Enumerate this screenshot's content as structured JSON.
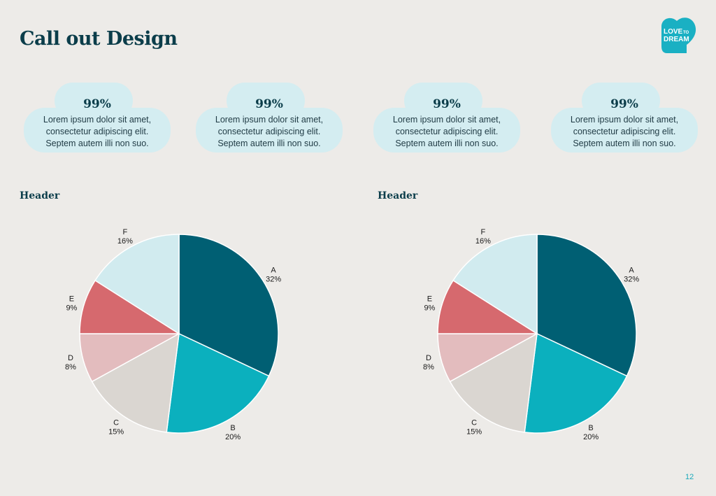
{
  "page": {
    "title": "Call out Design",
    "page_number": "12"
  },
  "logo": {
    "line1": "LOVE",
    "line2": "TO",
    "line3": "DREAM",
    "color": "#1AB0C3"
  },
  "callouts": [
    {
      "stat": "99%",
      "lines": [
        "Lorem ipsum dolor sit amet,",
        "consectetur adipiscing elit.",
        "Septem autem illi non suo."
      ]
    },
    {
      "stat": "99%",
      "lines": [
        "Lorem ipsum dolor sit amet,",
        "consectetur adipiscing elit.",
        "Septem autem illi non suo."
      ]
    },
    {
      "stat": "99%",
      "lines": [
        "Lorem ipsum dolor sit amet,",
        "consectetur adipiscing elit.",
        "Septem autem illi non suo."
      ]
    },
    {
      "stat": "99%",
      "lines": [
        "Lorem ipsum dolor sit amet,",
        "consectetur adipiscing elit.",
        "Septem autem illi non suo."
      ]
    }
  ],
  "callout_color": "#D4EDF1",
  "chart_data": [
    {
      "type": "pie",
      "title": "Header",
      "slices": [
        {
          "label": "A",
          "value": 32,
          "value_label": "32%",
          "color": "#005F73"
        },
        {
          "label": "B",
          "value": 20,
          "value_label": "20%",
          "color": "#0BB0BE"
        },
        {
          "label": "C",
          "value": 15,
          "value_label": "15%",
          "color": "#DAD6D1"
        },
        {
          "label": "D",
          "value": 8,
          "value_label": "8%",
          "color": "#E3BCBE"
        },
        {
          "label": "E",
          "value": 9,
          "value_label": "9%",
          "color": "#D6696E"
        },
        {
          "label": "F",
          "value": 16,
          "value_label": "16%",
          "color": "#D1EBEF"
        }
      ]
    },
    {
      "type": "pie",
      "title": "Header",
      "slices": [
        {
          "label": "A",
          "value": 32,
          "value_label": "32%",
          "color": "#005F73"
        },
        {
          "label": "B",
          "value": 20,
          "value_label": "20%",
          "color": "#0BB0BE"
        },
        {
          "label": "C",
          "value": 15,
          "value_label": "15%",
          "color": "#DAD6D1"
        },
        {
          "label": "D",
          "value": 8,
          "value_label": "8%",
          "color": "#E3BCBE"
        },
        {
          "label": "E",
          "value": 9,
          "value_label": "9%",
          "color": "#D6696E"
        },
        {
          "label": "F",
          "value": 16,
          "value_label": "16%",
          "color": "#D1EBEF"
        }
      ]
    }
  ]
}
